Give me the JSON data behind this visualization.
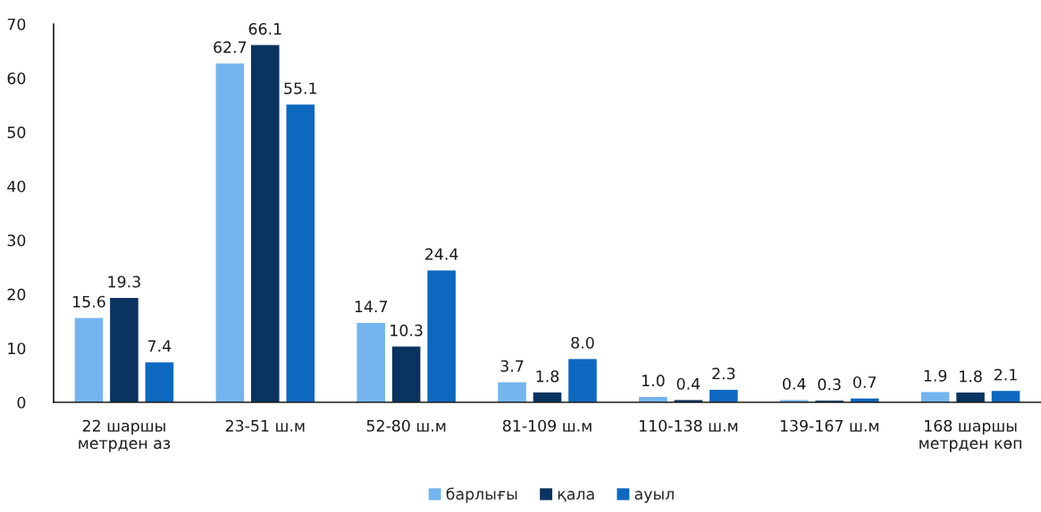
{
  "chart_data": {
    "type": "bar",
    "categories": [
      "22 шаршы\nметрден аз",
      "23-51 ш.м",
      "52-80 ш.м",
      "81-109 ш.м",
      "110-138 ш.м",
      "139-167 ш.м",
      "168 шаршы\nметрден көп"
    ],
    "series": [
      {
        "name": "барлығы",
        "color": "#74b5f0",
        "values": [
          15.6,
          62.7,
          14.7,
          3.7,
          1.0,
          0.4,
          1.9
        ],
        "value_labels": [
          "15.6",
          "62.7",
          "14.7",
          "3.7",
          "1.0",
          "0.4",
          "1.9"
        ]
      },
      {
        "name": "қала",
        "color": "#0a3360",
        "values": [
          19.3,
          66.1,
          10.3,
          1.8,
          0.4,
          0.3,
          1.8
        ],
        "value_labels": [
          "19.3",
          "66.1",
          "10.3",
          "1.8",
          "0.4",
          "0.3",
          "1.8"
        ]
      },
      {
        "name": "ауыл",
        "color": "#0d68c0",
        "values": [
          7.4,
          55.1,
          24.4,
          8.0,
          2.3,
          0.7,
          2.1
        ],
        "value_labels": [
          "7.4",
          "55.1",
          "24.4",
          "8.0",
          "2.3",
          "0.7",
          "2.1"
        ]
      }
    ],
    "ylim": [
      0,
      70
    ],
    "yticks": [
      0,
      10,
      20,
      30,
      40,
      50,
      60,
      70
    ],
    "grid": false,
    "legend": "bottom"
  }
}
